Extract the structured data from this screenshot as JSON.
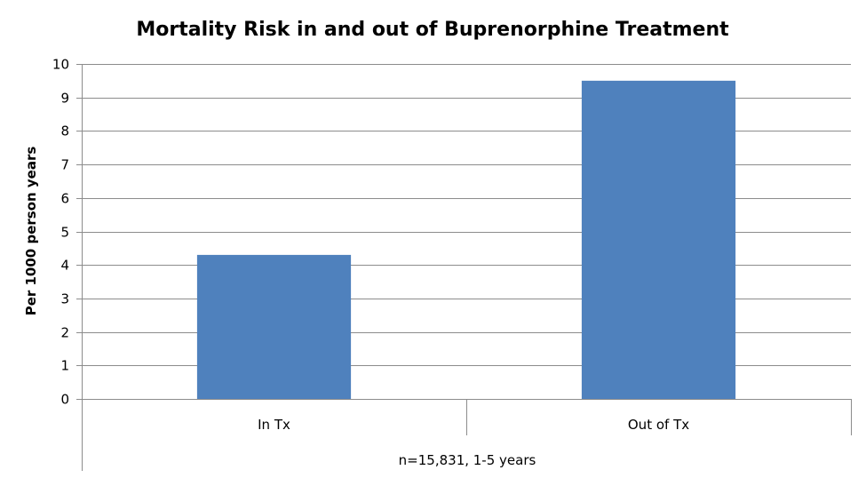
{
  "chart_data": {
    "type": "bar",
    "title": "Mortality Risk in and out of Buprenorphine Treatment",
    "ylabel": "Per 1000 person years",
    "xlabel": "n=15,831, 1-5 years",
    "categories": [
      "In Tx",
      "Out of Tx"
    ],
    "series": [
      {
        "values": [
          4.3,
          9.5
        ]
      }
    ],
    "ylim": [
      0,
      10
    ],
    "yticks": [
      0,
      1,
      2,
      3,
      4,
      5,
      6,
      7,
      8,
      9,
      10
    ],
    "grid": "horizontal",
    "legend": "none",
    "colors": {
      "bar": "#4f81bd",
      "grid": "#8c8c8c"
    }
  }
}
